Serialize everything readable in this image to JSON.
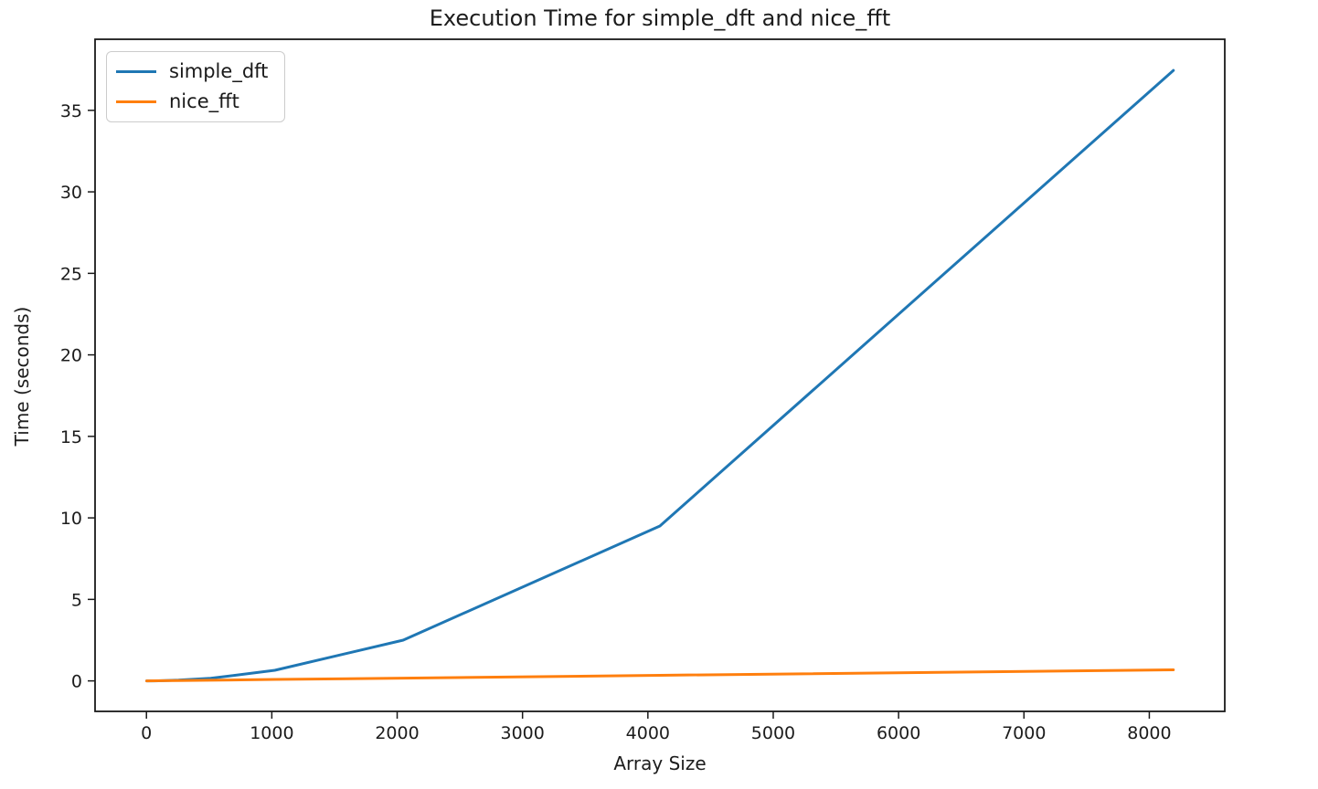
{
  "figure": {
    "background": "#ffffff",
    "axis_color": "#1a1a1a"
  },
  "chart_data": {
    "type": "line",
    "title": "Execution Time for simple_dft and nice_fft",
    "xlabel": "Array Size",
    "ylabel": "Time (seconds)",
    "xlim": [
      -410,
      8602
    ],
    "ylim": [
      -1.87,
      39.36
    ],
    "xticks": [
      0,
      1000,
      2000,
      3000,
      4000,
      5000,
      6000,
      7000,
      8000
    ],
    "yticks": [
      0,
      5,
      10,
      15,
      20,
      25,
      30,
      35
    ],
    "grid": false,
    "legend_position": "upper left",
    "series": [
      {
        "name": "simple_dft",
        "color": "#1f77b4",
        "x": [
          2,
          64,
          128,
          256,
          512,
          1024,
          2048,
          4096,
          8192
        ],
        "y": [
          0.0,
          0.003,
          0.012,
          0.045,
          0.16,
          0.65,
          2.5,
          9.5,
          37.45
        ]
      },
      {
        "name": "nice_fft",
        "color": "#ff7f0e",
        "x": [
          2,
          64,
          128,
          256,
          512,
          1024,
          2048,
          4096,
          8192
        ],
        "y": [
          0.0,
          0.005,
          0.01,
          0.02,
          0.04,
          0.09,
          0.17,
          0.34,
          0.68
        ]
      }
    ]
  }
}
